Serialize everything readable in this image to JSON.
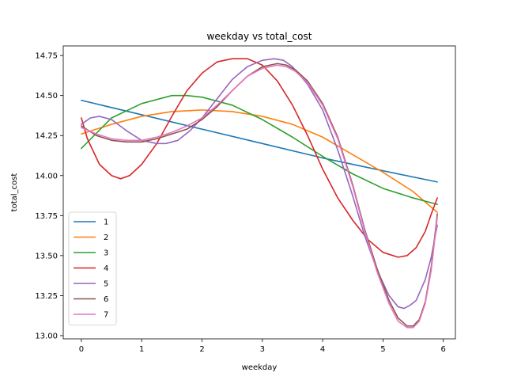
{
  "chart_data": {
    "type": "line",
    "title": "weekday vs total_cost",
    "xlabel": "weekday",
    "ylabel": "total_cost",
    "xlim": [
      -0.3,
      6.2
    ],
    "ylim": [
      12.98,
      14.81
    ],
    "xticks": [
      0,
      1,
      2,
      3,
      4,
      5,
      6
    ],
    "yticks": [
      13.0,
      13.25,
      13.5,
      13.75,
      14.0,
      14.25,
      14.5,
      14.75
    ],
    "ytick_labels": [
      "13.00",
      "13.25",
      "13.50",
      "13.75",
      "14.00",
      "14.25",
      "14.50",
      "14.75"
    ],
    "grid": false,
    "legend": "lower-left",
    "series": [
      {
        "name": "1",
        "color": "#1f77b4",
        "x": [
          0,
          1,
          2,
          3,
          4,
          5,
          5.9
        ],
        "y": [
          14.47,
          14.38,
          14.29,
          14.2,
          14.11,
          14.03,
          13.96
        ]
      },
      {
        "name": "2",
        "color": "#ff7f0e",
        "x": [
          0,
          0.5,
          1,
          1.5,
          2,
          2.5,
          3,
          3.5,
          4,
          4.5,
          5,
          5.5,
          5.9
        ],
        "y": [
          14.26,
          14.32,
          14.37,
          14.4,
          14.41,
          14.4,
          14.37,
          14.32,
          14.24,
          14.13,
          14.02,
          13.9,
          13.77
        ]
      },
      {
        "name": "3",
        "color": "#2ca02c",
        "x": [
          0,
          0.5,
          1,
          1.5,
          1.75,
          2,
          2.5,
          3,
          3.5,
          4,
          4.5,
          5,
          5.5,
          5.9
        ],
        "y": [
          14.17,
          14.36,
          14.45,
          14.5,
          14.5,
          14.49,
          14.44,
          14.35,
          14.24,
          14.12,
          14.01,
          13.92,
          13.86,
          13.82
        ]
      },
      {
        "name": "4",
        "color": "#d62728",
        "x": [
          0,
          0.1,
          0.3,
          0.5,
          0.65,
          0.8,
          1,
          1.25,
          1.5,
          1.75,
          2,
          2.25,
          2.5,
          2.75,
          3,
          3.25,
          3.5,
          3.75,
          4,
          4.25,
          4.5,
          4.75,
          5,
          5.25,
          5.4,
          5.55,
          5.7,
          5.8,
          5.9
        ],
        "y": [
          14.36,
          14.23,
          14.07,
          14.0,
          13.98,
          14.0,
          14.07,
          14.2,
          14.37,
          14.53,
          14.64,
          14.71,
          14.73,
          14.73,
          14.69,
          14.59,
          14.44,
          14.25,
          14.04,
          13.86,
          13.72,
          13.6,
          13.52,
          13.49,
          13.5,
          13.55,
          13.65,
          13.76,
          13.86
        ]
      },
      {
        "name": "5",
        "color": "#9467bd",
        "x": [
          0,
          0.15,
          0.3,
          0.5,
          0.75,
          1,
          1.25,
          1.4,
          1.6,
          1.8,
          2,
          2.25,
          2.5,
          2.75,
          3,
          3.2,
          3.35,
          3.5,
          3.75,
          4,
          4.25,
          4.5,
          4.7,
          4.9,
          5.1,
          5.25,
          5.35,
          5.45,
          5.55,
          5.7,
          5.8,
          5.9
        ],
        "y": [
          14.32,
          14.36,
          14.37,
          14.35,
          14.28,
          14.22,
          14.2,
          14.2,
          14.22,
          14.28,
          14.36,
          14.48,
          14.6,
          14.68,
          14.72,
          14.73,
          14.72,
          14.68,
          14.57,
          14.41,
          14.16,
          13.87,
          13.62,
          13.41,
          13.25,
          13.18,
          13.17,
          13.19,
          13.22,
          13.35,
          13.49,
          13.69
        ]
      },
      {
        "name": "6",
        "color": "#8c564b",
        "x": [
          0,
          0.25,
          0.5,
          0.75,
          1,
          1.25,
          1.5,
          1.75,
          2,
          2.25,
          2.5,
          2.75,
          3,
          3.25,
          3.4,
          3.55,
          3.75,
          4,
          4.25,
          4.5,
          4.7,
          4.9,
          5.1,
          5.25,
          5.4,
          5.5,
          5.6,
          5.7,
          5.8,
          5.9
        ],
        "y": [
          14.31,
          14.25,
          14.22,
          14.21,
          14.21,
          14.23,
          14.26,
          14.29,
          14.35,
          14.43,
          14.53,
          14.62,
          14.68,
          14.7,
          14.69,
          14.66,
          14.59,
          14.45,
          14.24,
          13.94,
          13.66,
          13.42,
          13.22,
          13.11,
          13.06,
          13.06,
          13.1,
          13.21,
          13.43,
          13.76
        ]
      },
      {
        "name": "7",
        "color": "#e377c2",
        "x": [
          0,
          0.25,
          0.5,
          0.75,
          1,
          1.25,
          1.5,
          1.75,
          2,
          2.25,
          2.5,
          2.75,
          3,
          3.25,
          3.4,
          3.55,
          3.75,
          4,
          4.25,
          4.5,
          4.7,
          4.9,
          5.1,
          5.25,
          5.4,
          5.5,
          5.6,
          5.7,
          5.8,
          5.9
        ],
        "y": [
          14.3,
          14.26,
          14.23,
          14.22,
          14.22,
          14.24,
          14.27,
          14.31,
          14.36,
          14.44,
          14.53,
          14.62,
          14.67,
          14.69,
          14.68,
          14.65,
          14.58,
          14.44,
          14.23,
          13.93,
          13.65,
          13.4,
          13.2,
          13.09,
          13.05,
          13.05,
          13.09,
          13.2,
          13.41,
          13.74
        ]
      }
    ]
  }
}
